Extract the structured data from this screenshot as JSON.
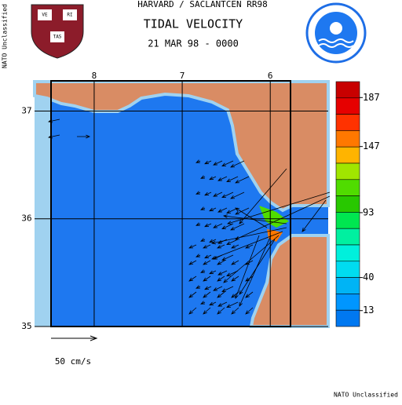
{
  "header": {
    "line1": "HARVARD / SACLANTCEN RR98",
    "title": "TIDAL VELOCITY",
    "date": "21 MAR 98 - 0000"
  },
  "logo_text": [
    "VE",
    "RI",
    "TAS"
  ],
  "classification": {
    "side": "NATO Unclassified",
    "footer": "NATO Unclassified"
  },
  "map": {
    "xlim": [
      8.49,
      5.77
    ],
    "xticks": [
      8,
      7,
      6
    ],
    "ylim": [
      35,
      37.28
    ],
    "yticks": [
      37,
      36,
      35
    ]
  },
  "colorbar": {
    "lim": [
      0,
      200
    ],
    "ticks": [
      187,
      147,
      93,
      40,
      13
    ],
    "colors": [
      "#c80000",
      "#e60000",
      "#ff3200",
      "#ff7800",
      "#ffb400",
      "#a0e600",
      "#50dc00",
      "#28c800",
      "#00e650",
      "#00f0a0",
      "#00f0dc",
      "#00dcf0",
      "#00b4f5",
      "#0096ff",
      "#0078f0"
    ]
  },
  "scale_arrow": {
    "label": "50 cm/s"
  }
}
